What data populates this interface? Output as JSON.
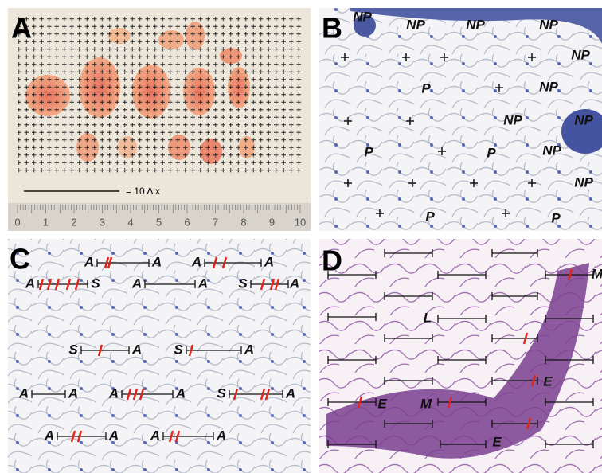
{
  "panels": [
    {
      "label": "A",
      "scale_label": "= 10 Δ x",
      "ruler": [
        "0",
        "1",
        "2",
        "3",
        "4",
        "5",
        "6",
        "7",
        "8",
        "9",
        "10"
      ]
    },
    {
      "label": "B",
      "annotations": [
        "NP",
        "NP",
        "NP",
        "NP",
        "NP",
        "P",
        "NP",
        "NP",
        "NP",
        "P",
        "P",
        "NP",
        "NP",
        "P",
        "P"
      ]
    },
    {
      "label": "C",
      "annotations": [
        "A",
        "A",
        "A",
        "A",
        "A",
        "S",
        "A",
        "A",
        "S",
        "A",
        "S",
        "A",
        "S",
        "A",
        "A",
        "A",
        "A",
        "A",
        "S",
        "A",
        "A",
        "A",
        "A",
        "A"
      ]
    },
    {
      "label": "D",
      "annotations": [
        "M",
        "L",
        "E",
        "E",
        "M",
        "E"
      ]
    }
  ]
}
